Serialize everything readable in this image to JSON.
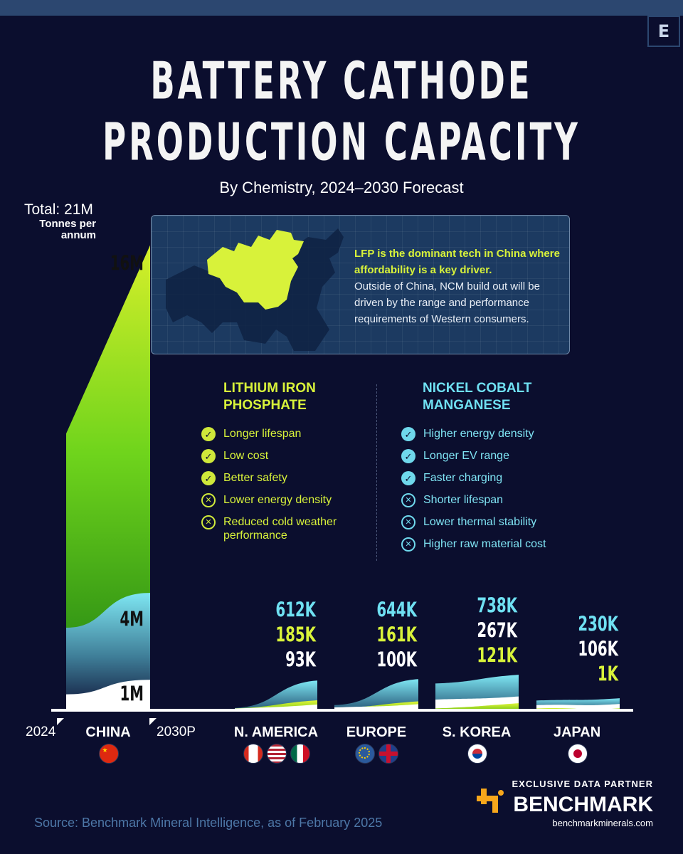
{
  "header": {
    "title_line1": "BATTERY CATHODE",
    "title_line2": "PRODUCTION CAPACITY",
    "subtitle": "By Chemistry, 2024–2030 Forecast",
    "logo": "E"
  },
  "total": {
    "label": "Total: 21M",
    "units": "Tonnes per annum"
  },
  "callout": {
    "highlight": "LFP is the dominant tech in China where affordability is a key driver.",
    "body": "Outside of China, NCM build out will be driven by the range and performance requirements of Western consumers."
  },
  "lfp": {
    "heading": "LITHIUM IRON PHOSPHATE",
    "items": [
      {
        "text": "Longer lifespan",
        "type": "check"
      },
      {
        "text": "Low cost",
        "type": "check"
      },
      {
        "text": "Better safety",
        "type": "check"
      },
      {
        "text": "Lower energy density",
        "type": "cross"
      },
      {
        "text": "Reduced cold weather performance",
        "type": "cross"
      }
    ]
  },
  "ncm": {
    "heading": "NICKEL COBALT MANGANESE",
    "items": [
      {
        "text": "Higher energy density",
        "type": "check"
      },
      {
        "text": "Longer EV range",
        "type": "check"
      },
      {
        "text": "Faster charging",
        "type": "check"
      },
      {
        "text": "Shorter lifespan",
        "type": "cross"
      },
      {
        "text": "Lower thermal stability",
        "type": "cross"
      },
      {
        "text": "Higher raw material cost",
        "type": "cross"
      }
    ]
  },
  "axis": {
    "start_year": "2024",
    "end_year": "2030P"
  },
  "colors": {
    "lfp": "#7ee81f",
    "ncm": "#6fe0f2",
    "other": "#ffffff",
    "background": "#0b0e2e"
  },
  "chart_data": {
    "type": "area",
    "x": [
      "2024",
      "2030P"
    ],
    "series_colors": {
      "lfp": "#7ee81f",
      "ncm": "#6fe0f2",
      "other": "#ffffff"
    },
    "regions": [
      {
        "name": "CHINA",
        "flags": [
          "china"
        ],
        "labels": [
          {
            "text": "16M",
            "series": "lfp"
          },
          {
            "text": "4M",
            "series": "ncm"
          },
          {
            "text": "1M",
            "series": "other"
          }
        ],
        "start": {
          "other": 0.5,
          "ncm": 2.8,
          "lfp": 9.5
        },
        "end": {
          "other": 1,
          "ncm": 4,
          "lfp": 16
        }
      },
      {
        "name": "N. AMERICA",
        "flags": [
          "canada",
          "usa",
          "mexico"
        ],
        "labels": [
          {
            "text": "612K",
            "series": "ncm"
          },
          {
            "text": "185K",
            "series": "lfp"
          },
          {
            "text": "93K",
            "series": "other"
          }
        ],
        "start": {
          "other": 0.005,
          "lfp": 0.01,
          "ncm": 0.02
        },
        "end": {
          "other": 0.093,
          "lfp": 0.185,
          "ncm": 0.612
        }
      },
      {
        "name": "EUROPE",
        "flags": [
          "eu",
          "uk"
        ],
        "labels": [
          {
            "text": "644K",
            "series": "ncm"
          },
          {
            "text": "161K",
            "series": "lfp"
          },
          {
            "text": "100K",
            "series": "other"
          }
        ],
        "start": {
          "other": 0.03,
          "lfp": 0.01,
          "ncm": 0.08
        },
        "end": {
          "other": 0.1,
          "lfp": 0.161,
          "ncm": 0.644
        }
      },
      {
        "name": "S. KOREA",
        "flags": [
          "south-korea"
        ],
        "labels": [
          {
            "text": "738K",
            "series": "ncm"
          },
          {
            "text": "267K",
            "series": "other"
          },
          {
            "text": "121K",
            "series": "lfp"
          }
        ],
        "start": {
          "other": 0.2,
          "lfp": 0.01,
          "ncm": 0.55
        },
        "end": {
          "other": 0.267,
          "lfp": 0.121,
          "ncm": 0.738
        }
      },
      {
        "name": "JAPAN",
        "flags": [
          "japan"
        ],
        "labels": [
          {
            "text": "230K",
            "series": "ncm"
          },
          {
            "text": "106K",
            "series": "other"
          },
          {
            "text": "1K",
            "series": "lfp"
          }
        ],
        "start": {
          "other": 0.08,
          "lfp": 0.001,
          "ncm": 0.18
        },
        "end": {
          "other": 0.106,
          "lfp": 0.001,
          "ncm": 0.23
        }
      }
    ]
  },
  "partner": {
    "heading": "EXCLUSIVE DATA PARTNER",
    "name": "BENCHMARK",
    "url": "benchmarkminerals.com"
  },
  "source": "Source: Benchmark Mineral Intelligence,  as of February 2025"
}
